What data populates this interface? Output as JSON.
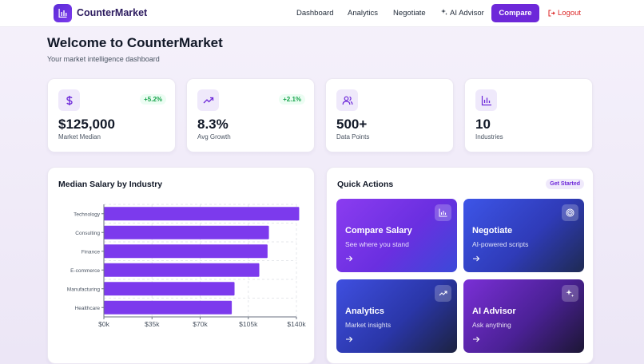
{
  "nav": {
    "app_name": "CounterMarket",
    "links": [
      "Dashboard",
      "Analytics",
      "Negotiate",
      "AI Advisor"
    ],
    "compare_label": "Compare",
    "logout_label": "Logout"
  },
  "header": {
    "title": "Welcome to CounterMarket",
    "subtitle": "Your market intelligence dashboard"
  },
  "stats": [
    {
      "icon": "dollar-icon",
      "value": "$125,000",
      "label": "Market Median",
      "delta": "+5.2%"
    },
    {
      "icon": "trending-up-icon",
      "value": "8.3%",
      "label": "Avg Growth",
      "delta": "+2.1%"
    },
    {
      "icon": "users-icon",
      "value": "500+",
      "label": "Data Points"
    },
    {
      "icon": "bar-chart-icon",
      "value": "10",
      "label": "Industries"
    }
  ],
  "chart_panel": {
    "title": "Median Salary by Industry"
  },
  "chart_data": {
    "type": "bar",
    "orientation": "horizontal",
    "title": "Median Salary by Industry",
    "categories": [
      "Technology",
      "Consulting",
      "Finance",
      "E-commerce",
      "Manufacturing",
      "Healthcare"
    ],
    "values": [
      142000,
      120000,
      119000,
      113000,
      95000,
      93000
    ],
    "xlim": [
      0,
      140000
    ],
    "x_ticks": [
      "$0k",
      "$35k",
      "$70k",
      "$105k",
      "$140k"
    ],
    "bar_color": "#7c3aed",
    "grid": true
  },
  "quick_actions": {
    "title": "Quick Actions",
    "badge": "Get Started",
    "cards": [
      {
        "title": "Compare Salary",
        "subtitle": "See where you stand",
        "icon": "bar-chart-icon"
      },
      {
        "title": "Negotiate",
        "subtitle": "AI-powered scripts",
        "icon": "target-icon"
      },
      {
        "title": "Analytics",
        "subtitle": "Market insights",
        "icon": "trending-up-icon"
      },
      {
        "title": "AI Advisor",
        "subtitle": "Ask anything",
        "icon": "sparkles-icon"
      }
    ]
  },
  "colors": {
    "accent": "#6d28d9",
    "positive": "#16a34a",
    "logout": "#dc2626"
  }
}
